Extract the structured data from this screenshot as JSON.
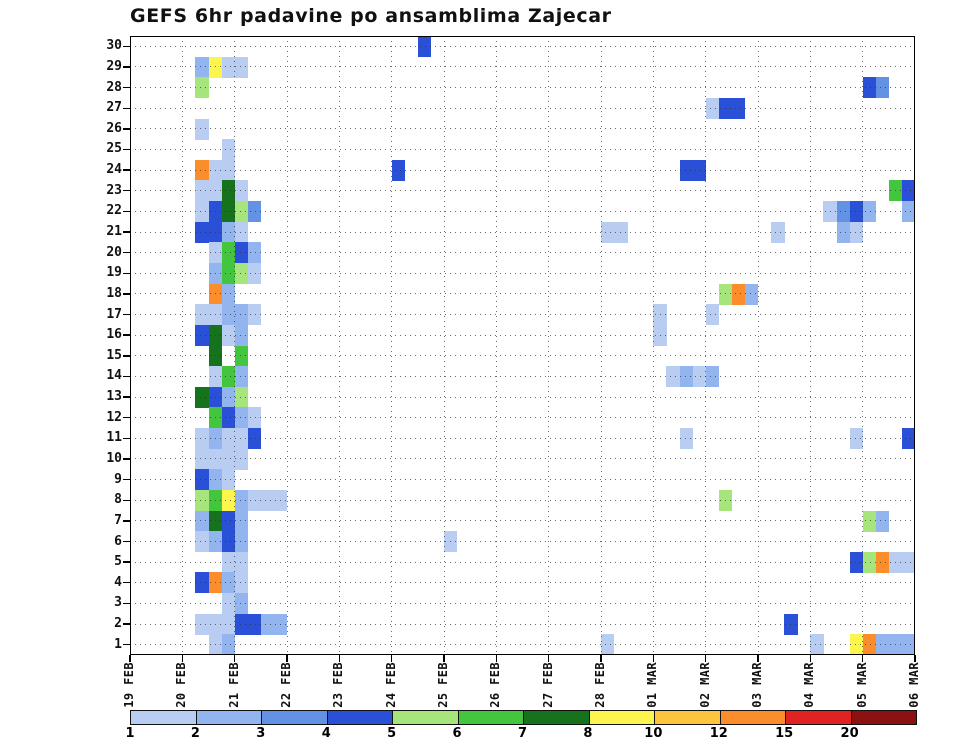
{
  "title": "GEFS 6hr padavine po ansamblima Zajecar",
  "chart_data": {
    "type": "heatmap",
    "title": "GEFS 6hr padavine po ansamblima Zajecar",
    "description": "GEFS ensemble 6-hourly precipitation per ensemble member for Zajecar; x = time (6hr steps), y = ensemble member 1-30, cell color = precipitation amount (mm)",
    "x_axis": {
      "tick_labels": [
        "19 FEB",
        "20 FEB",
        "21 FEB",
        "22 FEB",
        "23 FEB",
        "24 FEB",
        "25 FEB",
        "26 FEB",
        "27 FEB",
        "28 FEB",
        "01 MAR",
        "02 MAR",
        "03 MAR",
        "04 MAR",
        "05 MAR",
        "06 MAR"
      ],
      "steps_per_day": 4
    },
    "y_axis": {
      "min": 1,
      "max": 30,
      "tick_step": 1
    },
    "grid": "dotted",
    "levels": [
      1,
      2,
      3,
      4,
      5,
      6,
      7,
      8,
      10,
      12,
      15,
      20
    ],
    "palette": [
      "#b9cdf3",
      "#92b4ef",
      "#6391e4",
      "#2950d7",
      "#a6e57c",
      "#43c63e",
      "#17721d",
      "#fbf54e",
      "#fdc440",
      "#fb8d2a",
      "#e02322",
      "#8c1212"
    ],
    "cells": [
      [
        30,
        22,
        4
      ],
      [
        29,
        5,
        2
      ],
      [
        29,
        6,
        8
      ],
      [
        29,
        7,
        1
      ],
      [
        29,
        8,
        1
      ],
      [
        28,
        5,
        5
      ],
      [
        28,
        56,
        4
      ],
      [
        28,
        57,
        3
      ],
      [
        27,
        44,
        1
      ],
      [
        27,
        45,
        4
      ],
      [
        27,
        46,
        4
      ],
      [
        26,
        5,
        1
      ],
      [
        25,
        7,
        1
      ],
      [
        24,
        5,
        12
      ],
      [
        24,
        6,
        1
      ],
      [
        24,
        7,
        1
      ],
      [
        24,
        20,
        4
      ],
      [
        24,
        42,
        4
      ],
      [
        24,
        43,
        4
      ],
      [
        23,
        5,
        1
      ],
      [
        23,
        6,
        1
      ],
      [
        23,
        7,
        7
      ],
      [
        23,
        8,
        1
      ],
      [
        23,
        58,
        6
      ],
      [
        23,
        59,
        4
      ],
      [
        22,
        5,
        1
      ],
      [
        22,
        6,
        4
      ],
      [
        22,
        7,
        7
      ],
      [
        22,
        8,
        5
      ],
      [
        22,
        9,
        3
      ],
      [
        22,
        53,
        1
      ],
      [
        22,
        54,
        3
      ],
      [
        22,
        55,
        4
      ],
      [
        22,
        56,
        2
      ],
      [
        22,
        59,
        2
      ],
      [
        21,
        5,
        4
      ],
      [
        21,
        6,
        4
      ],
      [
        21,
        7,
        2
      ],
      [
        21,
        8,
        1
      ],
      [
        21,
        36,
        1
      ],
      [
        21,
        37,
        1
      ],
      [
        21,
        49,
        1
      ],
      [
        21,
        54,
        2
      ],
      [
        21,
        55,
        1
      ],
      [
        20,
        6,
        1
      ],
      [
        20,
        7,
        6
      ],
      [
        20,
        8,
        4
      ],
      [
        20,
        9,
        2
      ],
      [
        19,
        6,
        2
      ],
      [
        19,
        7,
        6
      ],
      [
        19,
        8,
        5
      ],
      [
        19,
        9,
        1
      ],
      [
        18,
        6,
        12
      ],
      [
        18,
        7,
        2
      ],
      [
        18,
        45,
        5
      ],
      [
        18,
        46,
        12
      ],
      [
        18,
        47,
        2
      ],
      [
        17,
        5,
        1
      ],
      [
        17,
        6,
        1
      ],
      [
        17,
        7,
        2
      ],
      [
        17,
        8,
        2
      ],
      [
        17,
        9,
        1
      ],
      [
        17,
        40,
        1
      ],
      [
        17,
        44,
        1
      ],
      [
        16,
        5,
        4
      ],
      [
        16,
        6,
        7
      ],
      [
        16,
        7,
        1
      ],
      [
        16,
        8,
        2
      ],
      [
        16,
        40,
        1
      ],
      [
        15,
        6,
        7
      ],
      [
        15,
        8,
        6
      ],
      [
        14,
        6,
        1
      ],
      [
        14,
        7,
        6
      ],
      [
        14,
        8,
        2
      ],
      [
        14,
        41,
        1
      ],
      [
        14,
        42,
        2
      ],
      [
        14,
        43,
        1
      ],
      [
        14,
        44,
        2
      ],
      [
        13,
        5,
        7
      ],
      [
        13,
        6,
        4
      ],
      [
        13,
        7,
        2
      ],
      [
        13,
        8,
        5
      ],
      [
        12,
        6,
        6
      ],
      [
        12,
        7,
        4
      ],
      [
        12,
        8,
        2
      ],
      [
        12,
        9,
        1
      ],
      [
        11,
        5,
        1
      ],
      [
        11,
        6,
        2
      ],
      [
        11,
        7,
        1
      ],
      [
        11,
        8,
        1
      ],
      [
        11,
        9,
        4
      ],
      [
        11,
        42,
        1
      ],
      [
        11,
        55,
        1
      ],
      [
        11,
        59,
        4
      ],
      [
        10,
        5,
        1
      ],
      [
        10,
        6,
        1
      ],
      [
        10,
        7,
        1
      ],
      [
        10,
        8,
        1
      ],
      [
        9,
        5,
        4
      ],
      [
        9,
        6,
        2
      ],
      [
        9,
        7,
        1
      ],
      [
        8,
        5,
        5
      ],
      [
        8,
        6,
        6
      ],
      [
        8,
        7,
        8
      ],
      [
        8,
        8,
        2
      ],
      [
        8,
        9,
        1
      ],
      [
        8,
        10,
        1
      ],
      [
        8,
        11,
        1
      ],
      [
        8,
        45,
        5
      ],
      [
        7,
        5,
        2
      ],
      [
        7,
        6,
        7
      ],
      [
        7,
        7,
        4
      ],
      [
        7,
        8,
        2
      ],
      [
        7,
        56,
        5
      ],
      [
        7,
        57,
        2
      ],
      [
        6,
        5,
        1
      ],
      [
        6,
        6,
        2
      ],
      [
        6,
        7,
        4
      ],
      [
        6,
        8,
        2
      ],
      [
        6,
        24,
        1
      ],
      [
        5,
        7,
        1
      ],
      [
        5,
        8,
        1
      ],
      [
        5,
        55,
        4
      ],
      [
        5,
        56,
        5
      ],
      [
        5,
        57,
        12
      ],
      [
        5,
        58,
        1
      ],
      [
        5,
        59,
        1
      ],
      [
        4,
        5,
        4
      ],
      [
        4,
        6,
        12
      ],
      [
        4,
        7,
        2
      ],
      [
        4,
        8,
        1
      ],
      [
        3,
        7,
        1
      ],
      [
        3,
        8,
        2
      ],
      [
        2,
        5,
        1
      ],
      [
        2,
        6,
        1
      ],
      [
        2,
        7,
        1
      ],
      [
        2,
        8,
        4
      ],
      [
        2,
        9,
        4
      ],
      [
        2,
        10,
        2
      ],
      [
        2,
        11,
        2
      ],
      [
        2,
        50,
        4
      ],
      [
        1,
        6,
        1
      ],
      [
        1,
        7,
        2
      ],
      [
        1,
        36,
        1
      ],
      [
        1,
        52,
        1
      ],
      [
        1,
        55,
        8
      ],
      [
        1,
        56,
        12
      ],
      [
        1,
        57,
        2
      ],
      [
        1,
        58,
        2
      ],
      [
        1,
        59,
        2
      ]
    ]
  },
  "colorbar": {
    "labels": [
      "1",
      "2",
      "3",
      "4",
      "5",
      "6",
      "7",
      "8",
      "10",
      "12",
      "15",
      "20"
    ],
    "colors": [
      "#b9cdf3",
      "#92b4ef",
      "#6391e4",
      "#2950d7",
      "#a6e57c",
      "#43c63e",
      "#17721d",
      "#fbf54e",
      "#fdc440",
      "#fb8d2a",
      "#e02322",
      "#8c1212"
    ]
  }
}
